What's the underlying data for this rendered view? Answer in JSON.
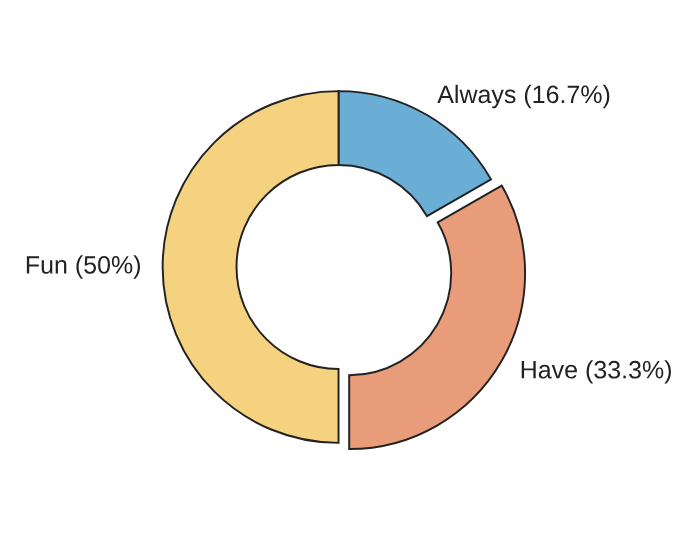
{
  "chart_data": {
    "type": "donut",
    "categories": [
      "Always (16.7%)",
      "Have (33.3%)",
      "Fun (50%)"
    ],
    "values": [
      16.7,
      33.3,
      50
    ],
    "colors": [
      "#6aaed6",
      "#e99c7a",
      "#f5d27f"
    ]
  }
}
